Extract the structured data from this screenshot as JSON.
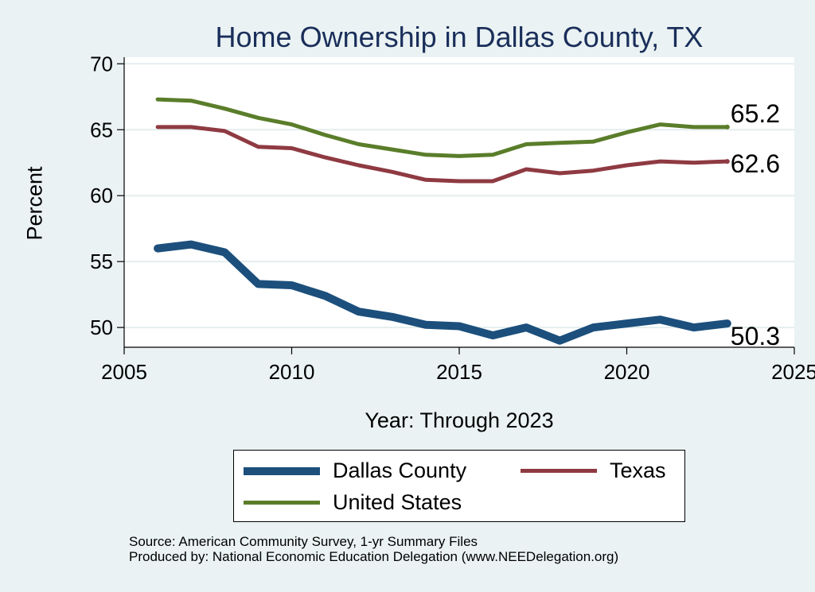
{
  "chart_data": {
    "type": "line",
    "title": "Home Ownership in Dallas County, TX",
    "xlabel": "Year: Through 2023",
    "ylabel": "Percent",
    "xlim": [
      2005,
      2025
    ],
    "ylim": [
      48.5,
      70.5
    ],
    "xticks": [
      2005,
      2010,
      2015,
      2020,
      2025
    ],
    "yticks": [
      50,
      55,
      60,
      65,
      70
    ],
    "grid": "horizontal",
    "x": [
      2006,
      2007,
      2008,
      2009,
      2010,
      2011,
      2012,
      2013,
      2014,
      2015,
      2016,
      2017,
      2018,
      2019,
      2020,
      2021,
      2022,
      2023
    ],
    "series": [
      {
        "name": "Dallas County",
        "color": "#1c4f7c",
        "values": [
          56.0,
          56.3,
          55.7,
          53.3,
          53.2,
          52.4,
          51.2,
          50.8,
          50.2,
          50.1,
          49.4,
          50.0,
          49.0,
          50.0,
          50.3,
          50.6,
          50.0,
          50.3
        ],
        "end_label": "50.3"
      },
      {
        "name": "Texas",
        "color": "#8f3a42",
        "values": [
          65.2,
          65.2,
          64.9,
          63.7,
          63.6,
          62.9,
          62.3,
          61.8,
          61.2,
          61.1,
          61.1,
          62.0,
          61.7,
          61.9,
          62.3,
          62.6,
          62.5,
          62.6
        ],
        "end_label": "62.6"
      },
      {
        "name": "United States",
        "color": "#5a7d2a",
        "values": [
          67.3,
          67.2,
          66.6,
          65.9,
          65.4,
          64.6,
          63.9,
          63.5,
          63.1,
          63.0,
          63.1,
          63.9,
          64.0,
          64.1,
          64.8,
          65.4,
          65.2,
          65.2
        ],
        "end_label": "65.2"
      }
    ],
    "legend": {
      "position": "bottom",
      "entries": [
        "Dallas County",
        "Texas",
        "United States"
      ]
    },
    "notes": [
      "Source: American Community Survey, 1-yr Summary Files",
      "Produced by: National Economic Education Delegation (www.NEEDelegation.org)"
    ]
  }
}
